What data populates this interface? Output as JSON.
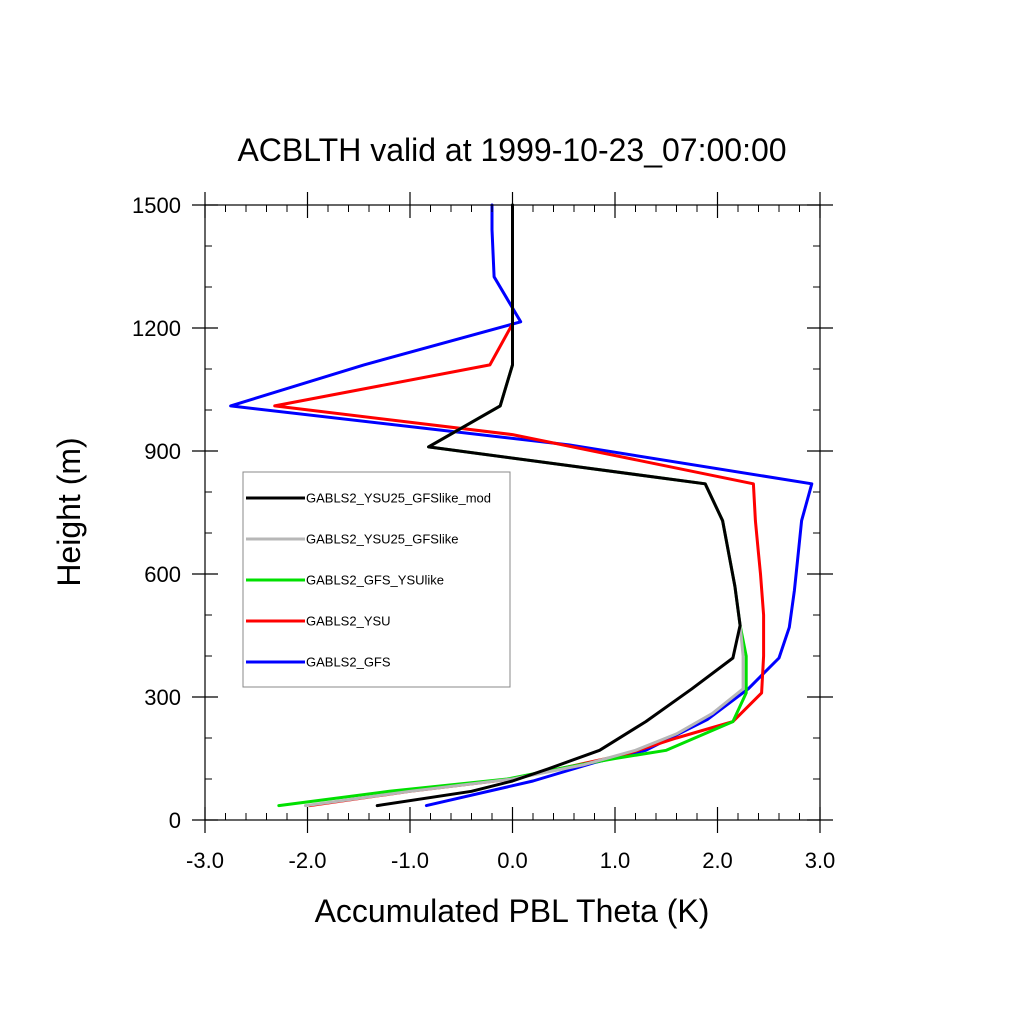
{
  "chart_data": {
    "type": "line",
    "title": "ACBLTH valid at 1999-10-23_07:00:00",
    "xlabel": "Accumulated PBL Theta (K)",
    "ylabel": "Height (m)",
    "xlim": [
      -3.0,
      3.0
    ],
    "ylim": [
      0,
      1500
    ],
    "x_major_ticks": [
      -3.0,
      -2.0,
      -1.0,
      0.0,
      1.0,
      2.0,
      3.0
    ],
    "x_tick_labels": [
      "-3.0",
      "-2.0",
      "-1.0",
      "0.0",
      "1.0",
      "2.0",
      "3.0"
    ],
    "x_minor_step": 0.2,
    "y_major_ticks": [
      0,
      300,
      600,
      900,
      1200,
      1500
    ],
    "y_tick_labels": [
      "0",
      "300",
      "600",
      "900",
      "1200",
      "1500"
    ],
    "y_minor_step": 100,
    "grid": false,
    "legend_position": "left",
    "series": [
      {
        "name": "GABLS2_YSU25_GFSlike_mod",
        "color": "#000000",
        "points": [
          [
            -1.32,
            35
          ],
          [
            -0.4,
            70
          ],
          [
            0.0,
            95
          ],
          [
            0.35,
            125
          ],
          [
            0.85,
            170
          ],
          [
            1.3,
            240
          ],
          [
            1.75,
            320
          ],
          [
            2.15,
            395
          ],
          [
            2.22,
            475
          ],
          [
            2.17,
            570
          ],
          [
            2.05,
            730
          ],
          [
            1.88,
            820
          ],
          [
            -0.82,
            910
          ],
          [
            -0.12,
            1010
          ],
          [
            0.0,
            1110
          ],
          [
            0.0,
            1210
          ],
          [
            0.0,
            1500
          ]
        ]
      },
      {
        "name": "GABLS2_YSU25_GFSlike",
        "color": "#b7b7b7",
        "points": [
          [
            -2.02,
            35
          ],
          [
            -1.0,
            70
          ],
          [
            0.0,
            100
          ],
          [
            0.7,
            135
          ],
          [
            1.2,
            170
          ],
          [
            1.6,
            210
          ],
          [
            1.95,
            260
          ],
          [
            2.25,
            320
          ],
          [
            2.25,
            400
          ],
          [
            2.22,
            475
          ],
          [
            2.17,
            570
          ],
          [
            2.05,
            730
          ],
          [
            1.88,
            820
          ],
          [
            -0.82,
            910
          ],
          [
            -0.12,
            1010
          ],
          [
            0.0,
            1110
          ],
          [
            0.0,
            1210
          ],
          [
            0.0,
            1500
          ]
        ]
      },
      {
        "name": "GABLS2_GFS_YSUlike",
        "color": "#00e000",
        "points": [
          [
            -2.28,
            35
          ],
          [
            -1.2,
            70
          ],
          [
            -0.05,
            100
          ],
          [
            0.55,
            130
          ],
          [
            1.0,
            150
          ],
          [
            1.5,
            170
          ],
          [
            2.15,
            240
          ],
          [
            2.28,
            310
          ],
          [
            2.28,
            400
          ],
          [
            2.22,
            475
          ],
          [
            2.17,
            570
          ],
          [
            2.05,
            730
          ],
          [
            1.88,
            820
          ],
          [
            -0.82,
            910
          ],
          [
            -0.12,
            1010
          ],
          [
            0.0,
            1110
          ],
          [
            0.0,
            1210
          ],
          [
            0.0,
            1500
          ]
        ]
      },
      {
        "name": "GABLS2_YSU",
        "color": "#ff0000",
        "points": [
          [
            -1.98,
            35
          ],
          [
            -1.0,
            70
          ],
          [
            0.0,
            100
          ],
          [
            0.55,
            130
          ],
          [
            1.1,
            160
          ],
          [
            1.6,
            200
          ],
          [
            2.15,
            240
          ],
          [
            2.43,
            310
          ],
          [
            2.45,
            400
          ],
          [
            2.45,
            500
          ],
          [
            2.42,
            600
          ],
          [
            2.4,
            650
          ],
          [
            2.37,
            730
          ],
          [
            2.35,
            820
          ],
          [
            0.0,
            940
          ],
          [
            -2.32,
            1010
          ],
          [
            -0.22,
            1110
          ],
          [
            0.0,
            1210
          ]
        ]
      },
      {
        "name": "GABLS2_GFS",
        "color": "#0000ff",
        "points": [
          [
            -0.84,
            35
          ],
          [
            0.2,
            95
          ],
          [
            0.8,
            140
          ],
          [
            1.3,
            170
          ],
          [
            1.9,
            245
          ],
          [
            2.3,
            320
          ],
          [
            2.6,
            395
          ],
          [
            2.7,
            470
          ],
          [
            2.75,
            560
          ],
          [
            2.78,
            630
          ],
          [
            2.82,
            730
          ],
          [
            2.92,
            820
          ],
          [
            0.55,
            915
          ],
          [
            -2.75,
            1010
          ],
          [
            -1.45,
            1110
          ],
          [
            0.08,
            1215
          ],
          [
            -0.18,
            1325
          ],
          [
            -0.2,
            1440
          ],
          [
            -0.2,
            1500
          ]
        ]
      }
    ]
  }
}
